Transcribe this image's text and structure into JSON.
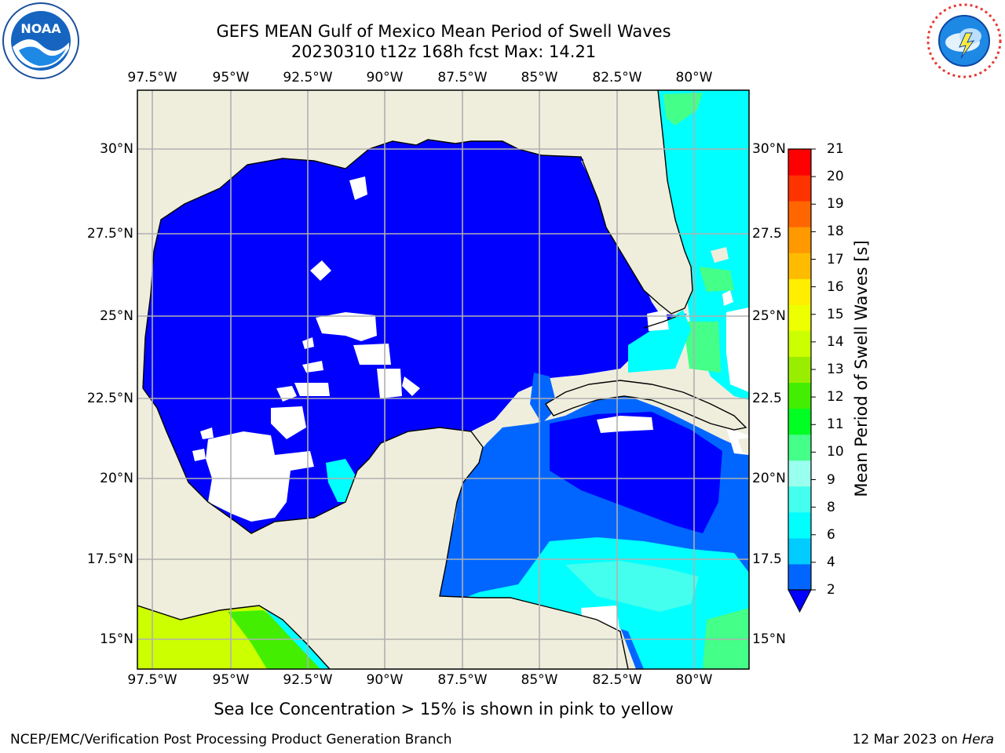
{
  "title_line1": "GEFS MEAN Gulf of Mexico Mean Period of Swell Waves",
  "title_line2": "20230310 t12z 168h fcst   Max: 14.21",
  "lon_labels": [
    "97.5°W",
    "95°W",
    "92.5°W",
    "90°W",
    "87.5°W",
    "85°W",
    "82.5°W",
    "80°W"
  ],
  "lat_labels_left": [
    "30°N",
    "27.5°N",
    "25°N",
    "22.5°N",
    "20°N",
    "17.5°N",
    "15°N"
  ],
  "lat_labels_right": [
    "30°N",
    "27.5",
    "25°N",
    "22.5",
    "20°N",
    "17.5",
    "15°N"
  ],
  "colorbar": {
    "label": "Mean Period of Swell Waves [s]",
    "ticks": [
      "2",
      "4",
      "6",
      "8",
      "9",
      "10",
      "11",
      "12",
      "13",
      "14",
      "15",
      "16",
      "17",
      "18",
      "19",
      "20",
      "21"
    ],
    "colors": [
      "#0066ff",
      "#00ccff",
      "#00ffff",
      "#44ffee",
      "#99ffee",
      "#44ff88",
      "#00ff22",
      "#44ee00",
      "#99ee00",
      "#ccff00",
      "#eeff00",
      "#ffee00",
      "#ffbb00",
      "#ff9900",
      "#ff6600",
      "#ff3300",
      "#ff0000"
    ],
    "under_color": "#0000ff"
  },
  "colors": {
    "land": "#efeedd",
    "ocean_low": "#0000ff",
    "ocean_mid": "#0066ff",
    "ocean_high": "#00ffff",
    "grid": "#b0b0b0"
  },
  "note": "Sea Ice Concentration > 15% is shown in pink to yellow",
  "credit": "NCEP/EMC/Verification Post Processing Product Generation Branch",
  "timestamp_date": "12 Mar 2023 on",
  "timestamp_host": "Hera",
  "logo_left_icon": "noaa-logo-icon",
  "logo_right_icon": "nws-logo-icon"
}
